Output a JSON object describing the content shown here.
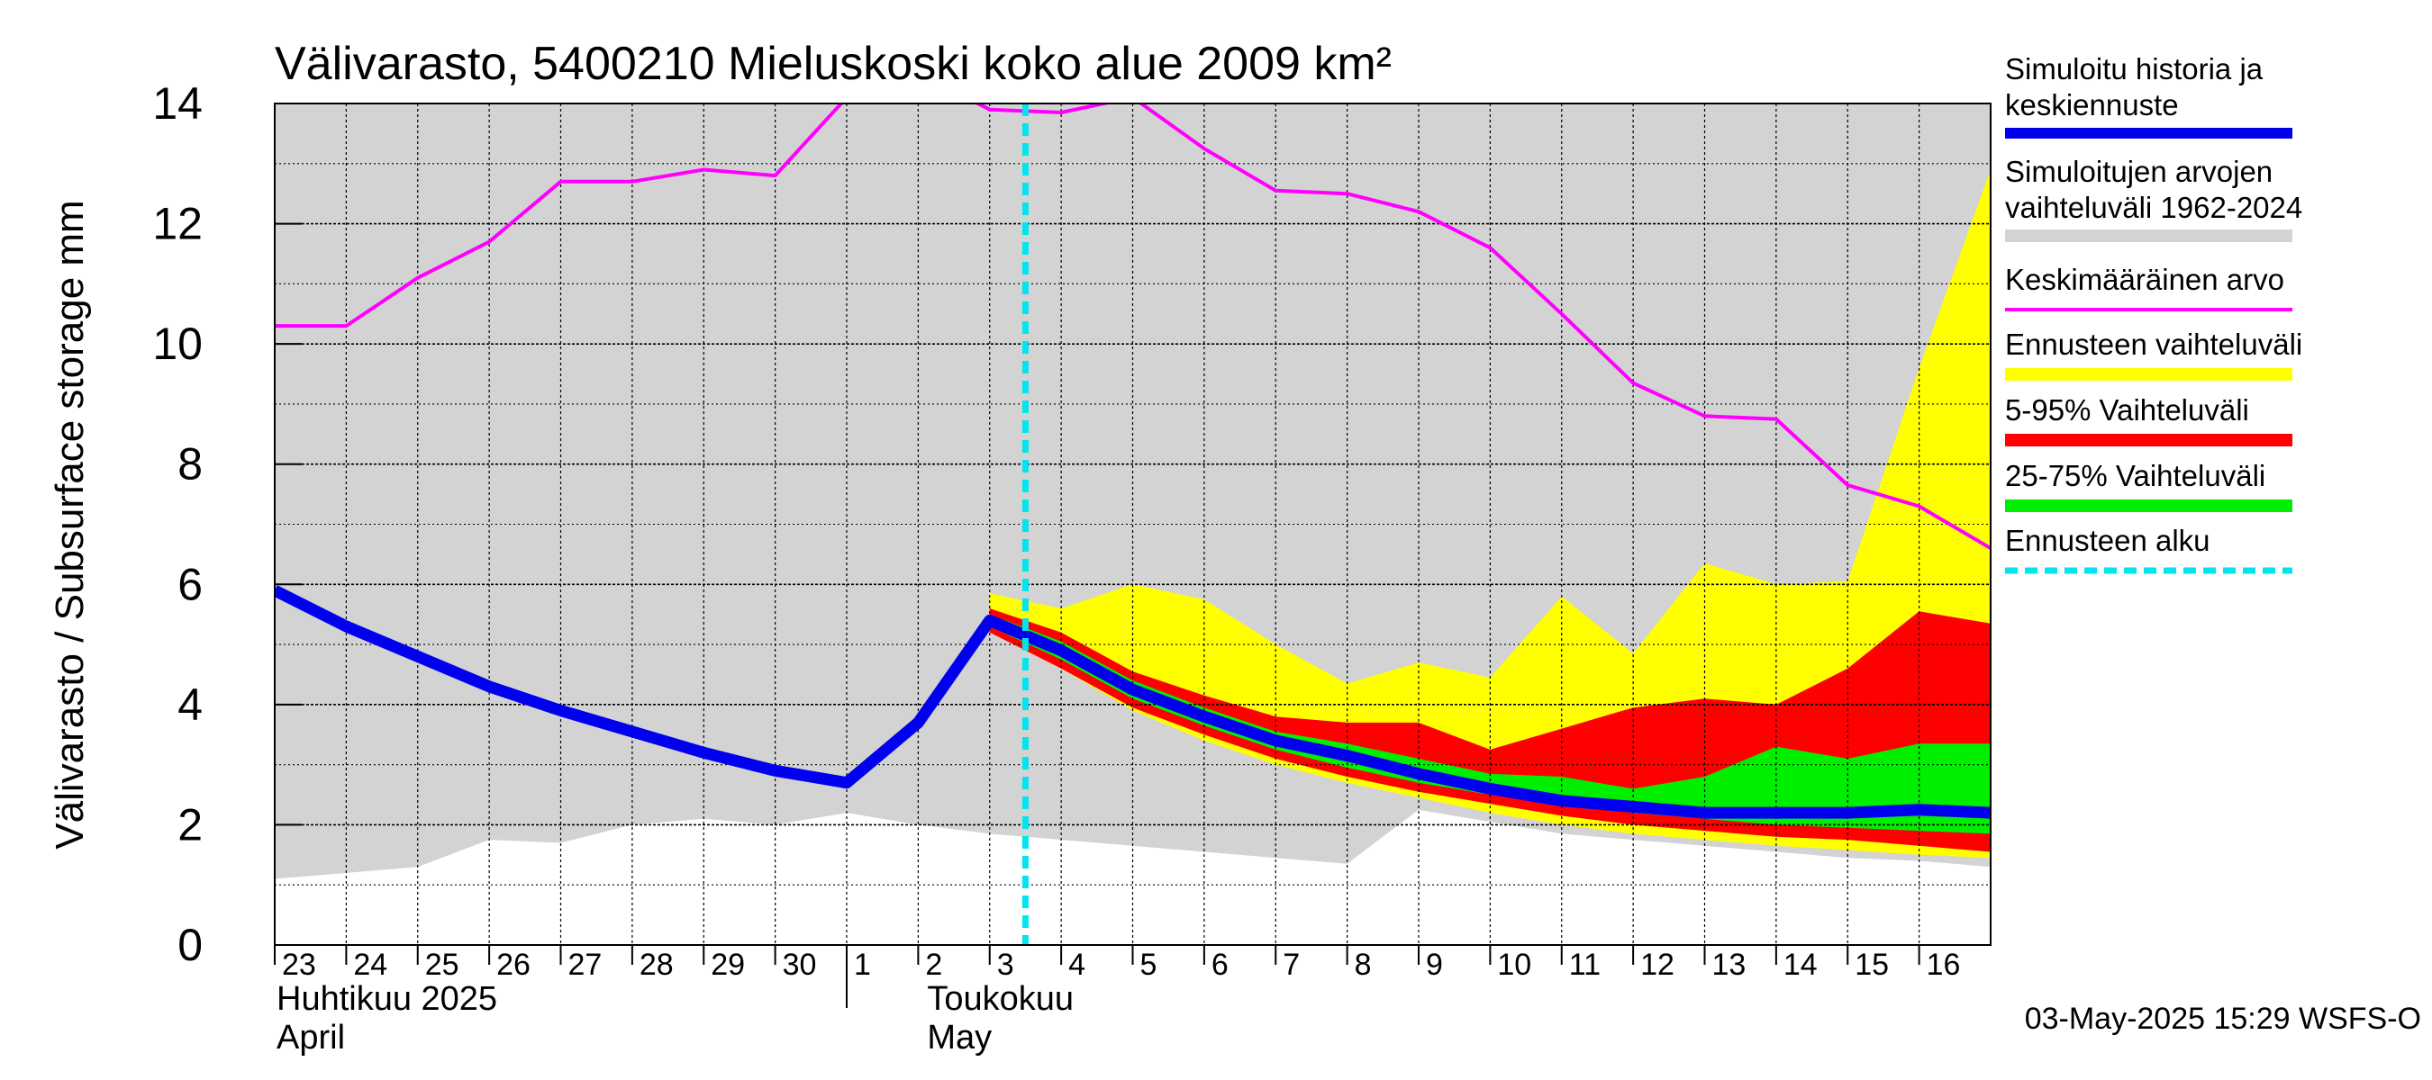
{
  "chart_data": {
    "type": "area",
    "title": "Välivarasto, 5400210 Mieluskoski koko alue 2009 km²",
    "ylabel": "Välivarasto / Subsurface storage  mm",
    "ylim": [
      0,
      14
    ],
    "y_ticks": [
      "0",
      "2",
      "4",
      "6",
      "8",
      "10",
      "12",
      "14"
    ],
    "x_range": [
      -0.5,
      23.5
    ],
    "x_tick_labels": [
      "23",
      "24",
      "25",
      "26",
      "27",
      "28",
      "29",
      "30",
      "1",
      "2",
      "3",
      "4",
      "5",
      "6",
      "7",
      "8",
      "9",
      "10",
      "11",
      "12",
      "13",
      "14",
      "15",
      "16"
    ],
    "month_labels": [
      {
        "fi": "Huhtikuu  2025",
        "en": "April"
      },
      {
        "fi": "Toukokuu",
        "en": "May"
      }
    ],
    "grid": true,
    "forecast_start": 10,
    "footer": "03-May-2025 15:29 WSFS-O",
    "colors": {
      "history_range": "#d3d3d3",
      "mean": "#ff00ff",
      "forecast_range": "#ffff00",
      "p5_95": "#ff0000",
      "p25_75": "#00ee00",
      "simulated": "#0000ee",
      "forecast_start": "#00e5ee"
    },
    "series": {
      "history_range": {
        "x": [
          -0.5,
          0.5,
          1.5,
          2.5,
          3.5,
          4.5,
          5.5,
          6.5,
          7.5,
          8.5,
          9.5,
          10.5,
          11.5,
          12.5,
          13.5,
          14.5,
          15.5,
          16.5,
          17.5,
          18.5,
          19.5,
          20.5,
          21.5,
          22.5,
          23.5
        ],
        "low": [
          1.1,
          1.2,
          1.3,
          1.75,
          1.7,
          2.0,
          2.1,
          2.0,
          2.2,
          2.0,
          1.85,
          1.75,
          1.65,
          1.55,
          1.45,
          1.35,
          2.25,
          2.05,
          1.85,
          1.75,
          1.65,
          1.55,
          1.45,
          1.4,
          1.3
        ],
        "high": [
          14,
          14,
          14,
          14,
          14,
          14,
          14,
          14,
          14,
          14,
          14,
          14,
          14,
          14,
          14,
          14,
          14,
          14,
          14,
          14,
          14,
          14,
          14,
          14,
          14
        ]
      },
      "mean": {
        "x": [
          -0.5,
          0.5,
          1.5,
          2.5,
          3.5,
          4.5,
          5.5,
          6.5,
          7.5,
          8.5,
          9.5,
          10.5,
          11.5,
          12.5,
          13.5,
          14.5,
          15.5,
          16.5,
          17.5,
          18.5,
          19.5,
          20.5,
          21.5,
          22.5,
          23.5
        ],
        "y": [
          10.3,
          10.3,
          11.1,
          11.7,
          12.7,
          12.7,
          12.9,
          12.8,
          14.1,
          14.5,
          13.9,
          13.85,
          14.1,
          13.25,
          12.55,
          12.5,
          12.2,
          11.6,
          10.5,
          9.35,
          8.8,
          8.75,
          7.65,
          7.3,
          6.6
        ]
      },
      "forecast_range": {
        "x": [
          9.5,
          10.5,
          11.5,
          12.5,
          13.5,
          14.5,
          15.5,
          16.5,
          17.5,
          18.5,
          19.5,
          20.5,
          21.5,
          22.5,
          23.5
        ],
        "low": [
          5.2,
          4.6,
          3.9,
          3.4,
          3.0,
          2.7,
          2.45,
          2.2,
          2.0,
          1.85,
          1.75,
          1.65,
          1.58,
          1.5,
          1.45
        ],
        "high": [
          5.85,
          5.6,
          6.0,
          5.75,
          5.0,
          4.35,
          4.7,
          4.45,
          5.8,
          4.85,
          6.35,
          6.0,
          6.05,
          9.6,
          12.9
        ]
      },
      "p5_95": {
        "x": [
          9.5,
          10.5,
          11.5,
          12.5,
          13.5,
          14.5,
          15.5,
          16.5,
          17.5,
          18.5,
          19.5,
          20.5,
          21.5,
          22.5,
          23.5
        ],
        "low": [
          5.2,
          4.6,
          3.95,
          3.5,
          3.1,
          2.8,
          2.55,
          2.35,
          2.15,
          2.0,
          1.9,
          1.8,
          1.75,
          1.65,
          1.55
        ],
        "high": [
          5.6,
          5.2,
          4.55,
          4.15,
          3.8,
          3.7,
          3.7,
          3.25,
          3.6,
          3.95,
          4.1,
          4.0,
          4.6,
          5.55,
          5.35
        ]
      },
      "p25_75": {
        "x": [
          9.5,
          10.5,
          11.5,
          12.5,
          13.5,
          14.5,
          15.5,
          16.5,
          17.5,
          18.5,
          19.5,
          20.5,
          21.5,
          22.5,
          23.5
        ],
        "low": [
          5.3,
          4.75,
          4.1,
          3.65,
          3.25,
          2.95,
          2.7,
          2.5,
          2.35,
          2.2,
          2.1,
          2.0,
          1.95,
          1.9,
          1.85
        ],
        "high": [
          5.5,
          5.05,
          4.4,
          3.95,
          3.55,
          3.35,
          3.1,
          2.85,
          2.8,
          2.6,
          2.8,
          3.3,
          3.1,
          3.35,
          3.35
        ]
      },
      "simulated": {
        "x": [
          -0.5,
          0.5,
          1.5,
          2.5,
          3.5,
          4.5,
          5.5,
          6.5,
          7.5,
          8.5,
          9.5,
          10.5,
          11.5,
          12.5,
          13.5,
          14.5,
          15.5,
          16.5,
          17.5,
          18.5,
          19.5,
          20.5,
          21.5,
          22.5,
          23.5
        ],
        "y": [
          5.9,
          5.3,
          4.8,
          4.3,
          3.9,
          3.55,
          3.2,
          2.9,
          2.7,
          3.7,
          5.4,
          4.9,
          4.25,
          3.8,
          3.4,
          3.15,
          2.85,
          2.6,
          2.4,
          2.3,
          2.2,
          2.2,
          2.2,
          2.25,
          2.2
        ]
      }
    },
    "legend": [
      {
        "label": "Simuloitu historia ja keskiennuste",
        "line1": "Simuloitu historia ja",
        "line2": "keskiennuste",
        "key": "simulated"
      },
      {
        "label": "Simuloitujen arvojen vaihteluväli 1962-2024",
        "line1": "Simuloitujen arvojen",
        "line2": "vaihteluväli 1962-2024",
        "key": "history_range"
      },
      {
        "label": "Keskimääräinen arvo",
        "line1": "Keskimääräinen arvo",
        "key": "mean"
      },
      {
        "label": "Ennusteen vaihteluväli",
        "line1": "Ennusteen vaihteluväli",
        "key": "forecast_range"
      },
      {
        "label": "5-95% Vaihteluväli",
        "line1": "5-95% Vaihteluväli",
        "key": "p5_95"
      },
      {
        "label": "25-75% Vaihteluväli",
        "line1": "25-75% Vaihteluväli",
        "key": "p25_75"
      },
      {
        "label": "Ennusteen alku",
        "line1": "Ennusteen alku",
        "key": "forecast_start"
      }
    ]
  }
}
